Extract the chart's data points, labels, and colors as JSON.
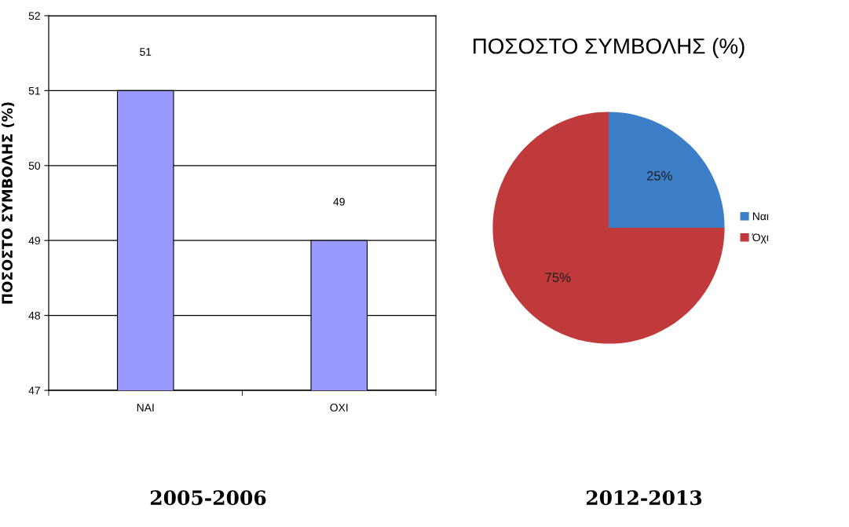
{
  "chart_data": [
    {
      "type": "bar",
      "ylabel": "ΠΟΣΟΣΤΟ ΣΥΜΒΟΛΗΣ (%)",
      "categories": [
        "ΝΑΙ",
        "ΟΧΙ"
      ],
      "values": [
        51,
        49
      ],
      "color": "#9999ff",
      "ylim": [
        47,
        52
      ],
      "yticks": [
        47,
        48,
        49,
        50,
        51,
        52
      ],
      "grid": "y",
      "data_labels": true,
      "annotations": [
        "2005-2006"
      ]
    },
    {
      "type": "pie",
      "title": "ΠΟΣΟΣΤΟ ΣΥΜΒΟΛΗΣ (%)",
      "categories": [
        "Ναι",
        "Όχι"
      ],
      "values": [
        25,
        75
      ],
      "colors": [
        "#3d7ec8",
        "#c0393b"
      ],
      "value_labels": [
        "25%",
        "75%"
      ],
      "legend": "right",
      "annotations": [
        "2012-2013"
      ]
    }
  ]
}
